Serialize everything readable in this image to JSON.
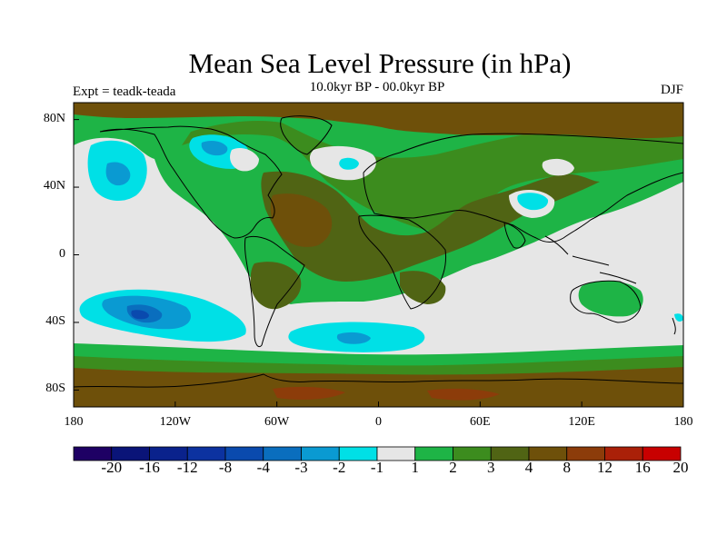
{
  "title": "Mean Sea Level Pressure (in hPa)",
  "subtitle": "10.0kyr BP - 00.0kyr BP",
  "left_label": "Expt = teadk-teada",
  "right_label": "DJF",
  "y_ticks": [
    {
      "value": 80,
      "label": "80N"
    },
    {
      "value": 40,
      "label": "40N"
    },
    {
      "value": 0,
      "label": "0"
    },
    {
      "value": -40,
      "label": "40S"
    },
    {
      "value": -80,
      "label": "80S"
    }
  ],
  "x_ticks": [
    {
      "value": -180,
      "label": "180"
    },
    {
      "value": -120,
      "label": "120W"
    },
    {
      "value": -60,
      "label": "60W"
    },
    {
      "value": 0,
      "label": "0"
    },
    {
      "value": 60,
      "label": "60E"
    },
    {
      "value": 120,
      "label": "120E"
    },
    {
      "value": 180,
      "label": "180"
    }
  ],
  "colorbar": {
    "colors": [
      "#1e0064",
      "#0a1478",
      "#0a228c",
      "#0c32a0",
      "#0a4aae",
      "#0a6ebe",
      "#0a9ad2",
      "#00e0e6",
      "#e6e6e6",
      "#1eb446",
      "#3c8c1e",
      "#506414",
      "#6e500a",
      "#8c3c0a",
      "#aa2008",
      "#c80000"
    ],
    "labels": [
      "-20",
      "-16",
      "-12",
      "-8",
      "-4",
      "-3",
      "-2",
      "-1",
      "1",
      "2",
      "3",
      "4",
      "8",
      "12",
      "16",
      "20"
    ]
  },
  "map": {
    "lon_range": [
      -180,
      180
    ],
    "lat_range": [
      -90,
      90
    ],
    "background_class": "-1 to 1 hPa"
  }
}
